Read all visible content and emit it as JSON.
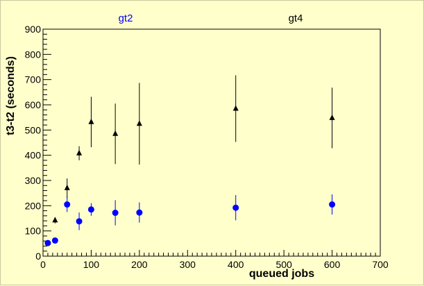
{
  "chart_data": {
    "type": "scatter",
    "title": "",
    "xlabel": "queued jobs",
    "ylabel": "t3-t2 (seconds)",
    "xlim": [
      0,
      700
    ],
    "ylim": [
      0,
      900
    ],
    "x_ticks": [
      "0",
      "100",
      "200",
      "300",
      "400",
      "500",
      "600",
      "700"
    ],
    "y_ticks": [
      "0",
      "100",
      "200",
      "300",
      "400",
      "500",
      "600",
      "700",
      "800",
      "900"
    ],
    "grid": false,
    "legend_placement": "top",
    "series": [
      {
        "name": "gt2",
        "color": "#0000ff",
        "marker": "circle",
        "points": [
          {
            "x": 10,
            "y": 52,
            "err": 0
          },
          {
            "x": 25,
            "y": 62,
            "err": 0
          },
          {
            "x": 50,
            "y": 205,
            "err": 30
          },
          {
            "x": 75,
            "y": 138,
            "err": 35
          },
          {
            "x": 100,
            "y": 185,
            "err": 25
          },
          {
            "x": 150,
            "y": 172,
            "err": 50
          },
          {
            "x": 200,
            "y": 173,
            "err": 40
          },
          {
            "x": 400,
            "y": 192,
            "err": 50
          },
          {
            "x": 600,
            "y": 205,
            "err": 40
          }
        ]
      },
      {
        "name": "gt4",
        "color": "#000000",
        "marker": "triangle",
        "points": [
          {
            "x": 25,
            "y": 142,
            "err": 12
          },
          {
            "x": 50,
            "y": 270,
            "err": 38
          },
          {
            "x": 75,
            "y": 408,
            "err": 28
          },
          {
            "x": 100,
            "y": 532,
            "err": 100
          },
          {
            "x": 150,
            "y": 485,
            "err": 120
          },
          {
            "x": 200,
            "y": 525,
            "err": 162
          },
          {
            "x": 400,
            "y": 585,
            "err": 132
          },
          {
            "x": 600,
            "y": 548,
            "err": 120
          }
        ]
      }
    ]
  }
}
